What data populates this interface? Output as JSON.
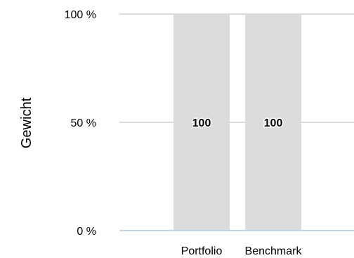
{
  "chart_data": {
    "type": "bar",
    "ylabel": "Gewicht",
    "xlabel": "",
    "categories": [
      "Portfolio",
      "Benchmark"
    ],
    "values": [
      100,
      100
    ],
    "data_labels": [
      "100",
      "100"
    ],
    "ylim": [
      0,
      100
    ],
    "yticks": [
      0,
      50,
      100
    ],
    "ytick_labels": [
      "0 %",
      "50 %",
      "100 %"
    ],
    "grid": true,
    "legend": "none",
    "colors": {
      "bar": "#dcdcdc",
      "grid": "#d0d0d0",
      "baseline": "#c3d3ea"
    }
  }
}
